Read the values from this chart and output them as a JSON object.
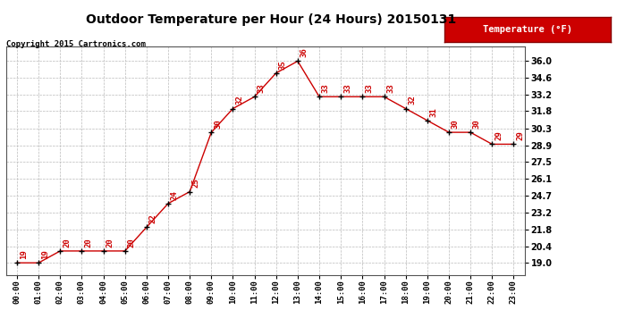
{
  "title": "Outdoor Temperature per Hour (24 Hours) 20150131",
  "copyright": "Copyright 2015 Cartronics.com",
  "legend_label": "Temperature (°F)",
  "hours": [
    "00:00",
    "01:00",
    "02:00",
    "03:00",
    "04:00",
    "05:00",
    "06:00",
    "07:00",
    "08:00",
    "09:00",
    "10:00",
    "11:00",
    "12:00",
    "13:00",
    "14:00",
    "15:00",
    "16:00",
    "17:00",
    "18:00",
    "19:00",
    "20:00",
    "21:00",
    "22:00",
    "23:00"
  ],
  "values": [
    19,
    19,
    20,
    20,
    20,
    20,
    22,
    24,
    25,
    30,
    32,
    33,
    35,
    36,
    33,
    33,
    33,
    33,
    32,
    31,
    30,
    30,
    29,
    29
  ],
  "line_color": "#cc0000",
  "marker_color": "#000000",
  "ylim_min": 18.0,
  "ylim_max": 37.2,
  "yticks": [
    19.0,
    20.4,
    21.8,
    23.2,
    24.7,
    26.1,
    27.5,
    28.9,
    30.3,
    31.8,
    33.2,
    34.6,
    36.0
  ],
  "ytick_labels": [
    "19.0",
    "20.4",
    "21.8",
    "23.2",
    "24.7",
    "26.1",
    "27.5",
    "28.9",
    "30.3",
    "31.8",
    "33.2",
    "34.6",
    "36.0"
  ],
  "bg_color": "#ffffff",
  "grid_color": "#bbbbbb",
  "label_color": "#cc0000",
  "legend_bg": "#cc0000",
  "legend_text_color": "#ffffff",
  "title_fontsize": 10,
  "copyright_fontsize": 6.5
}
